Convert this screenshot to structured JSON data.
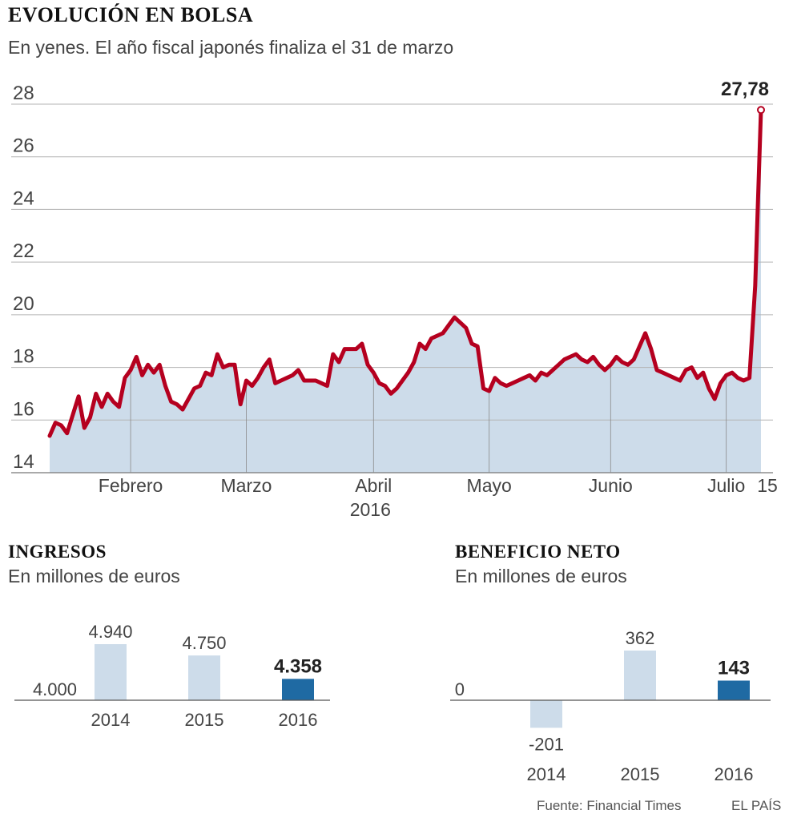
{
  "header": {
    "title": "EVOLUCIÓN EN BOLSA",
    "subtitle": "En yenes. El año fiscal japonés finaliza el 31 de marzo"
  },
  "colors": {
    "line": "#b5001f",
    "area": "#cddcea",
    "bar_light": "#cddcea",
    "bar_highlight": "#1f6aa3",
    "grid": "#b3b3b3"
  },
  "footer": {
    "source": "Fuente: Financial Times",
    "brand": "EL PAÍS"
  },
  "chart_data": [
    {
      "type": "area",
      "title": "EVOLUCIÓN EN BOLSA",
      "subtitle": "En yenes. El año fiscal japonés finaliza el 31 de marzo",
      "ylim": [
        14,
        28
      ],
      "yticks": [
        "14",
        "16",
        "18",
        "20",
        "22",
        "24",
        "26",
        "28"
      ],
      "xtick_labels": [
        {
          "label": "Febrero",
          "index": 14
        },
        {
          "label": "Marzo",
          "index": 34
        },
        {
          "label": "Abril",
          "index": 56
        },
        {
          "label": "Mayo",
          "index": 76
        },
        {
          "label": "Junio",
          "index": 97
        },
        {
          "label": "Julio",
          "index": 117
        },
        {
          "label": "15",
          "index": 123
        }
      ],
      "year_label": "2016",
      "annotation": "27,78",
      "grid": true,
      "values": [
        15.4,
        15.9,
        15.8,
        15.5,
        16.2,
        16.9,
        15.7,
        16.1,
        17.0,
        16.5,
        17.0,
        16.7,
        16.5,
        17.6,
        17.9,
        18.4,
        17.7,
        18.1,
        17.8,
        18.1,
        17.3,
        16.7,
        16.6,
        16.4,
        16.8,
        17.2,
        17.3,
        17.8,
        17.7,
        18.5,
        18.0,
        18.1,
        18.1,
        16.6,
        17.5,
        17.3,
        17.6,
        18.0,
        18.3,
        17.4,
        17.5,
        17.6,
        17.7,
        17.9,
        17.5,
        17.5,
        17.5,
        17.4,
        17.3,
        18.5,
        18.2,
        18.7,
        18.7,
        18.7,
        18.9,
        18.1,
        17.8,
        17.4,
        17.3,
        17.0,
        17.2,
        17.5,
        17.8,
        18.2,
        18.9,
        18.7,
        19.1,
        19.2,
        19.3,
        19.6,
        19.9,
        19.7,
        19.5,
        18.9,
        18.8,
        17.2,
        17.1,
        17.6,
        17.4,
        17.3,
        17.4,
        17.5,
        17.6,
        17.7,
        17.5,
        17.8,
        17.7,
        17.9,
        18.1,
        18.3,
        18.4,
        18.5,
        18.3,
        18.2,
        18.4,
        18.1,
        17.9,
        18.1,
        18.4,
        18.2,
        18.1,
        18.3,
        18.8,
        19.3,
        18.7,
        17.9,
        17.8,
        17.7,
        17.6,
        17.5,
        17.9,
        18.0,
        17.6,
        17.8,
        17.2,
        16.8,
        17.4,
        17.7,
        17.8,
        17.6,
        17.5,
        17.6,
        21.1,
        27.78
      ]
    },
    {
      "type": "bar",
      "title": "INGRESOS",
      "subtitle": "En millones de euros",
      "categories": [
        "2014",
        "2015",
        "2016"
      ],
      "values": [
        4940,
        4750,
        4358
      ],
      "value_labels": [
        "4.940",
        "4.750",
        "4.358"
      ],
      "baseline": 4000,
      "baseline_label": "4.000",
      "highlight_index": 2
    },
    {
      "type": "bar",
      "title": "BENEFICIO NETO",
      "subtitle": "En millones de euros",
      "categories": [
        "2014",
        "2015",
        "2016"
      ],
      "values": [
        -201,
        362,
        143
      ],
      "value_labels": [
        "-201",
        "362",
        "143"
      ],
      "baseline": 0,
      "baseline_label": "0",
      "highlight_index": 2
    }
  ]
}
